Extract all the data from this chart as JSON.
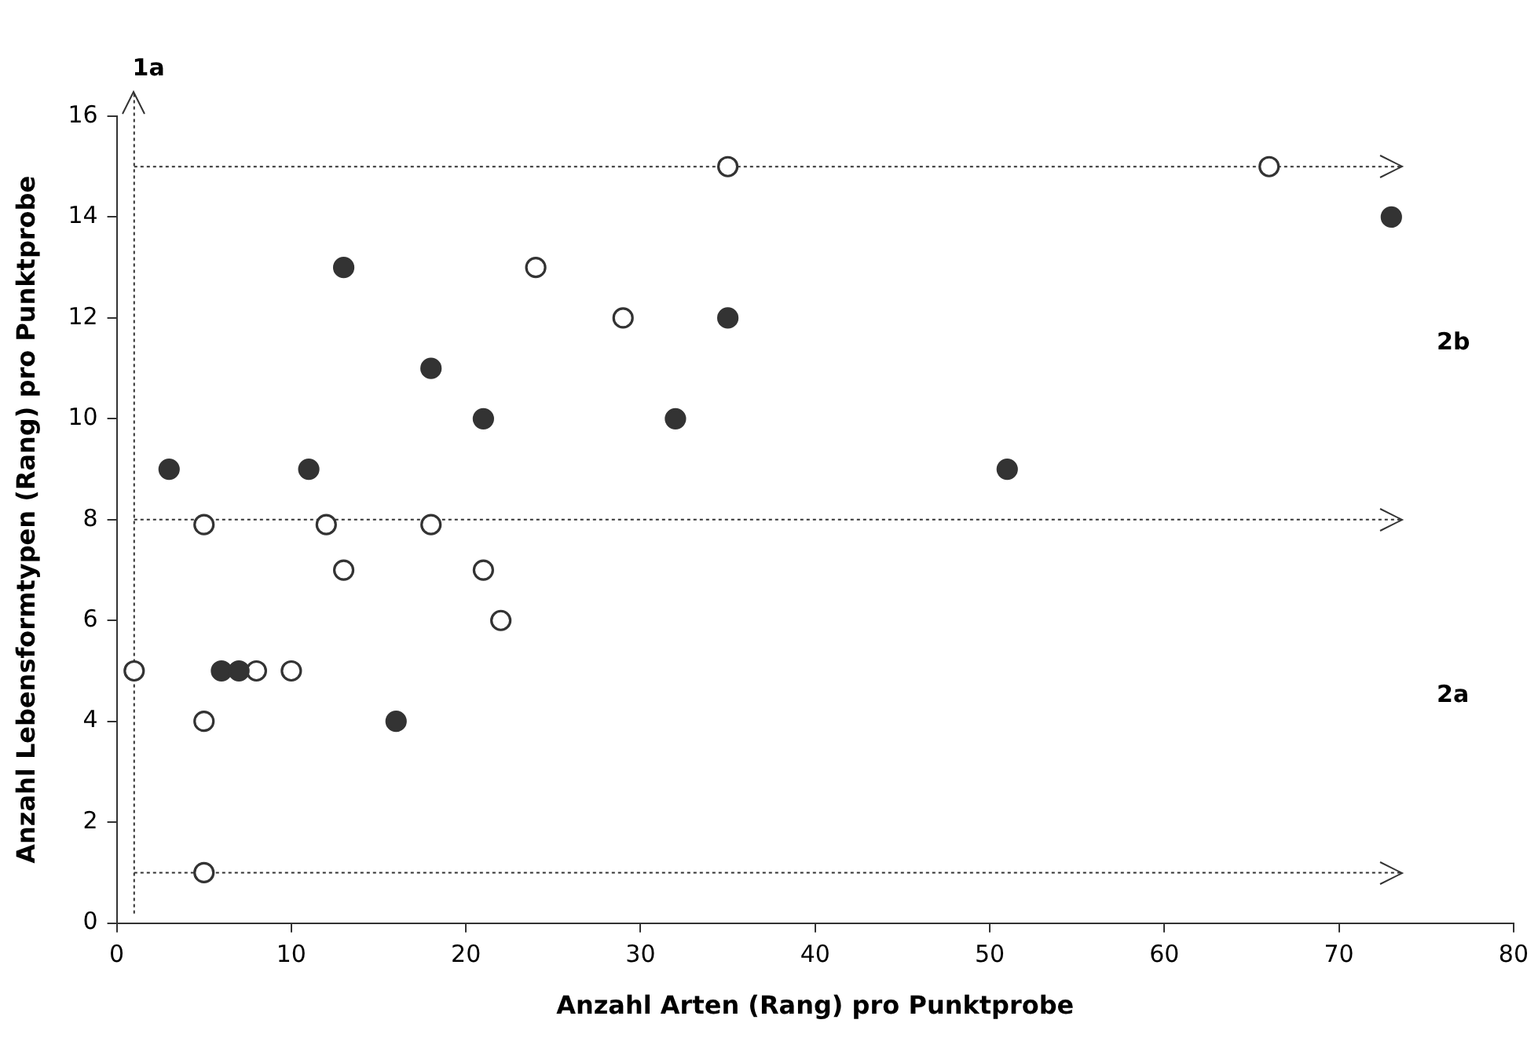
{
  "chart_data": {
    "type": "scatter",
    "xlabel": "Anzahl Arten (Rang) pro Punktprobe",
    "ylabel": "Anzahl Lebensformtypen (Rang) pro Punktprobe",
    "xlim": [
      0,
      80
    ],
    "xticks": [
      0,
      10,
      20,
      30,
      40,
      50,
      60,
      70,
      80
    ],
    "ylim": [
      0,
      16
    ],
    "yticks": [
      0,
      2,
      4,
      6,
      8,
      10,
      12,
      14,
      16
    ],
    "grid": false,
    "legend": false,
    "marker": "circle",
    "series": [
      {
        "color": "#333333",
        "x": [
          3,
          6,
          7,
          11,
          13,
          16,
          18,
          21,
          32,
          35,
          51,
          73
        ],
        "values": [
          9,
          5,
          5,
          9,
          13,
          4,
          11,
          10,
          10,
          12,
          9,
          14
        ]
      },
      {
        "color": "#ffffff",
        "x": [
          1,
          5,
          5,
          5,
          8,
          10,
          12,
          13,
          18,
          21,
          22,
          24,
          29,
          35,
          66
        ],
        "values": [
          5,
          7.9,
          4,
          1,
          5,
          5,
          7.9,
          7,
          7.9,
          7,
          6,
          13,
          12,
          15,
          15
        ]
      }
    ],
    "ref_lines": [
      {
        "axis": "x",
        "value": 1,
        "line_style": "dotted"
      },
      {
        "axis": "y",
        "value": 15,
        "line_style": "dotted"
      },
      {
        "axis": "y",
        "value": 8,
        "line_style": "dotted"
      },
      {
        "axis": "y",
        "value": 1,
        "line_style": "dotted"
      }
    ],
    "annotations": [
      "1a",
      "2b",
      "2a"
    ]
  }
}
